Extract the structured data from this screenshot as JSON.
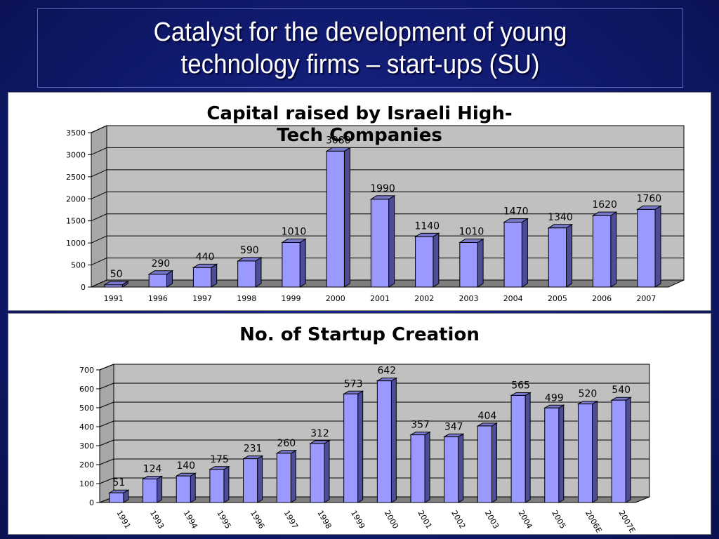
{
  "slide": {
    "title": "Catalyst for the development of young\ntechnology firms – start-ups (SU)"
  },
  "colors": {
    "background": "#141f7a",
    "bar_front": "#9999ff",
    "bar_side": "#4c4c99",
    "bar_top": "#7878cc",
    "plot_wall": "#c0c0c0",
    "plot_floor": "#7f7f7f"
  },
  "chart_data": [
    {
      "type": "bar",
      "title": "Capital raised by Israeli High-Tech Companies",
      "title_lines": [
        "Capital raised by Israeli High-",
        "Tech Companies"
      ],
      "categories": [
        "1991",
        "1996",
        "1997",
        "1998",
        "1999",
        "2000",
        "2001",
        "2002",
        "2003",
        "2004",
        "2005",
        "2006",
        "2007"
      ],
      "values": [
        50,
        290,
        440,
        590,
        1010,
        3080,
        1990,
        1140,
        1010,
        1470,
        1340,
        1620,
        1760
      ],
      "data_labels": [
        "50",
        "290",
        "440",
        "590",
        "1010",
        "3080",
        "1990",
        "1140",
        "1010",
        "1470",
        "1340",
        "1620",
        "1760"
      ],
      "ylim": [
        0,
        3500
      ],
      "yticks": [
        0,
        500,
        1000,
        1500,
        2000,
        2500,
        3000,
        3500
      ],
      "xlabel": "",
      "ylabel": "",
      "grid": true,
      "legend": "none",
      "style": "3d-column"
    },
    {
      "type": "bar",
      "title": "No. of Startup Creation",
      "title_lines": [
        "No. of Startup Creation"
      ],
      "categories": [
        "1991",
        "1993",
        "1994",
        "1995",
        "1996",
        "1997",
        "1998",
        "1999",
        "2000",
        "2001",
        "2002",
        "2003",
        "2004",
        "2005",
        "2006E",
        "2007E"
      ],
      "values": [
        51,
        124,
        140,
        175,
        231,
        260,
        312,
        573,
        642,
        357,
        347,
        404,
        565,
        499,
        520,
        540
      ],
      "data_labels": [
        "51",
        "124",
        "140",
        "175",
        "231",
        "260",
        "312",
        "573",
        "642",
        "357",
        "347",
        "404",
        "565",
        "499",
        "520",
        "540"
      ],
      "ylim": [
        0,
        700
      ],
      "yticks": [
        0,
        100,
        200,
        300,
        400,
        500,
        600,
        700
      ],
      "xlabel": "",
      "ylabel": "",
      "grid": true,
      "legend": "none",
      "style": "3d-column",
      "xtick_rotation": 60
    }
  ]
}
